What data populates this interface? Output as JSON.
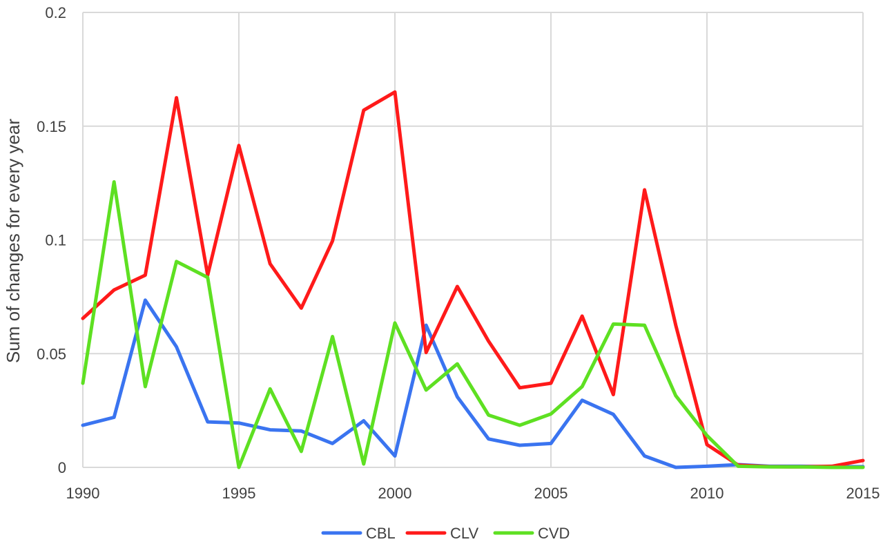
{
  "chart_data": {
    "type": "line",
    "title": "",
    "xlabel": "",
    "ylabel": "Sum of changes for every  year",
    "xlim": [
      1990,
      2015
    ],
    "ylim": [
      0,
      0.2
    ],
    "x_ticks": [
      1990,
      1995,
      2000,
      2005,
      2010,
      2015
    ],
    "y_ticks": [
      0,
      0.05,
      0.1,
      0.15,
      0.2
    ],
    "y_tick_labels": [
      "0",
      "0.05",
      "0.1",
      "0.15",
      "0.2"
    ],
    "grid": true,
    "legend_position": "bottom",
    "x": [
      1990,
      1991,
      1992,
      1993,
      1994,
      1995,
      1996,
      1997,
      1998,
      1999,
      2000,
      2001,
      2002,
      2003,
      2004,
      2005,
      2006,
      2007,
      2008,
      2009,
      2010,
      2011,
      2012,
      2013,
      2014,
      2015
    ],
    "series": [
      {
        "name": "CBL",
        "color": "#3a74f0",
        "values": [
          0.0185,
          0.022,
          0.0735,
          0.053,
          0.02,
          0.0195,
          0.0165,
          0.016,
          0.0105,
          0.0205,
          0.005,
          0.0625,
          0.031,
          0.0125,
          0.0097,
          0.0105,
          0.0295,
          0.0233,
          0.005,
          0.0,
          0.0005,
          0.0012,
          0.0005,
          0.0005,
          0.0003,
          0.0003
        ]
      },
      {
        "name": "CLV",
        "color": "#ff1a1a",
        "values": [
          0.0655,
          0.078,
          0.0845,
          0.1625,
          0.0845,
          0.1415,
          0.0895,
          0.07,
          0.0995,
          0.157,
          0.165,
          0.0505,
          0.0795,
          0.0555,
          0.035,
          0.037,
          0.0665,
          0.032,
          0.122,
          0.0625,
          0.01,
          0.001,
          0.0003,
          0.0002,
          0.0005,
          0.003
        ]
      },
      {
        "name": "CVD",
        "color": "#5ee022",
        "values": [
          0.037,
          0.1255,
          0.0355,
          0.0905,
          0.0835,
          0.0,
          0.0345,
          0.007,
          0.0575,
          0.0015,
          0.0635,
          0.034,
          0.0455,
          0.023,
          0.0185,
          0.0235,
          0.0355,
          0.063,
          0.0625,
          0.0315,
          0.014,
          0.0005,
          0.0002,
          0.0002,
          0.0,
          0.0
        ]
      }
    ]
  }
}
